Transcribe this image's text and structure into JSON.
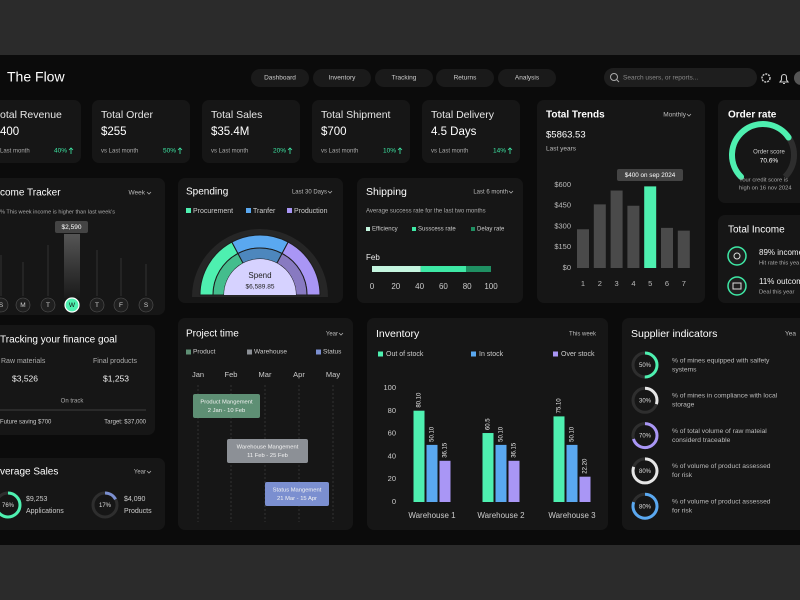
{
  "header": {
    "title": "The Flow",
    "tabs": [
      "Dashboard",
      "Inventory",
      "Tracking",
      "Returns",
      "Analysis"
    ],
    "search_placeholder": "Search users, or reports..."
  },
  "stat_cards": [
    {
      "title": "otal Revenue",
      "value": "400",
      "caption": "Last month",
      "change": "40%"
    },
    {
      "title": "Total Order",
      "value": "$255",
      "caption": "vs Last month",
      "change": "50%"
    },
    {
      "title": "Total Sales",
      "value": "$35.4M",
      "caption": "vs Last month",
      "change": "20%"
    },
    {
      "title": "Total Shipment",
      "value": "$700",
      "caption": "vs Last month",
      "change": "10%"
    },
    {
      "title": "Total Delivery",
      "value": "4.5 Days",
      "caption": "vs Last month",
      "change": "14%"
    }
  ],
  "total_trends": {
    "title": "Total Trends",
    "period": "Monthly",
    "value": "$5863.53",
    "caption": "Last years",
    "chart": {
      "type": "bar",
      "categories": [
        "1",
        "2",
        "3",
        "4",
        "5",
        "6",
        "7"
      ],
      "values": [
        280,
        460,
        560,
        450,
        590,
        290,
        270
      ],
      "colors": [
        "#4a4a4a",
        "#4a4a4a",
        "#4a4a4a",
        "#4a4a4a",
        "#4ef0b0",
        "#4a4a4a",
        "#4a4a4a"
      ],
      "ylim": [
        0,
        600
      ],
      "yticks": [
        {
          "value": 0,
          "label": "$0"
        },
        {
          "value": 150,
          "label": "$150"
        },
        {
          "value": 300,
          "label": "$300"
        },
        {
          "value": 450,
          "label": "$450"
        },
        {
          "value": 600,
          "label": "$600"
        }
      ],
      "tooltip": "$400 on sep 2024"
    }
  },
  "order_rate": {
    "title": "Order rate",
    "label": "Order score",
    "score": {
      "value": 70.6,
      "label": "70.6%"
    },
    "color": "#4ef0b0",
    "note": [
      "Your credit score is",
      "high on 16 nov 2024"
    ]
  },
  "total_income": {
    "title": "Total Income",
    "items": [
      {
        "value": "89% income",
        "caption": "Hit rate this yea"
      },
      {
        "value": "11% outcom",
        "caption": "Deal this year"
      }
    ]
  },
  "income_tracker": {
    "title": "come Tracker",
    "period": "Week",
    "note": "% This week income is higher than last week's",
    "tooltip": "$2,590",
    "days": [
      "S",
      "M",
      "T",
      "W",
      "T",
      "F",
      "S"
    ]
  },
  "spending": {
    "title": "Spending",
    "period": "Last 30 Days",
    "legend": [
      {
        "name": "Procurement",
        "color": "#4ef0b0"
      },
      {
        "name": "Tranfer",
        "color": "#5aa8f0"
      },
      {
        "name": "Production",
        "color": "#a996f5"
      }
    ],
    "label": "Spend",
    "value": "$6,589.85"
  },
  "shipping": {
    "title": "Shipping",
    "period": "Last 6 month",
    "note": "Average success  rate for the last two months",
    "chart": {
      "type": "bar",
      "orientation": "horizontal",
      "stacked": true,
      "categories": [
        "Feb"
      ],
      "series": [
        {
          "name": "Efficiency",
          "color": "#c4f5df",
          "values": [
            41
          ]
        },
        {
          "name": "Susscess rate",
          "color": "#3ee8a5",
          "values": [
            38
          ]
        },
        {
          "name": "Delay rate",
          "color": "#1f8f62",
          "values": [
            21
          ]
        }
      ],
      "xlim": [
        0,
        100
      ],
      "xticks": [
        0,
        20,
        40,
        60,
        80,
        100
      ]
    }
  },
  "finance_goal": {
    "title": "Tracking your finance goal",
    "items": [
      {
        "label": "Raw materials",
        "value": "$3,526"
      },
      {
        "label": "Final products",
        "value": "$1,253"
      }
    ],
    "status": "On track",
    "saving": "Future saving $700",
    "target": "Target: $37,000"
  },
  "average_sales": {
    "title": "verage Sales",
    "period": "Year",
    "items": [
      {
        "percent": {
          "value": 76,
          "label": "76%"
        },
        "value": "$9,253",
        "label": "Applications",
        "color": "#4ef0b0"
      },
      {
        "percent": {
          "value": 17,
          "label": "17%"
        },
        "value": "$4,090",
        "label": "Products",
        "color": "#7b8fd0"
      }
    ]
  },
  "project_time": {
    "title": "Project time",
    "period": "Year",
    "legend": [
      {
        "name": "Product",
        "color": "#5e8f74"
      },
      {
        "name": "Warehouse",
        "color": "#8c9096"
      },
      {
        "name": "Status",
        "color": "#7b8fd0"
      }
    ],
    "months": [
      "Jan",
      "Feb",
      "Mar",
      "Apr",
      "May"
    ],
    "tasks": [
      {
        "name": "Product Mangement",
        "dates": "2 Jan - 10 Feb"
      },
      {
        "name": "Warehouse Mangement",
        "dates": "11 Feb - 25 Feb"
      },
      {
        "name": "Status Mangement",
        "dates": "21 Mar - 15 Apr"
      }
    ]
  },
  "inventory": {
    "title": "Inventory",
    "period": "This week",
    "chart": {
      "type": "bar",
      "categories": [
        "Warehouse 1",
        "Warehouse 2",
        "Warehouse 3"
      ],
      "series": [
        {
          "name": "Out of stock",
          "color": "#4ef0b0",
          "values": [
            80.1,
            60.5,
            75.1
          ],
          "value_labels": [
            "80.10",
            "60.5",
            "75.10"
          ]
        },
        {
          "name": "In stock",
          "color": "#5aa8f0",
          "values": [
            50.1,
            50.1,
            50.1
          ],
          "value_labels": [
            "50.10",
            "50.10",
            "50.10"
          ]
        },
        {
          "name": "Over stock",
          "color": "#a996f5",
          "values": [
            36.15,
            36.15,
            22.2
          ],
          "value_labels": [
            "36.15",
            "36.15",
            "22.20"
          ]
        }
      ],
      "ylim": [
        0,
        100
      ],
      "yticks": [
        0,
        20,
        40,
        60,
        80,
        100
      ]
    }
  },
  "supplier_indicators": {
    "title": "Supplier indicators",
    "period": "Yea",
    "items": [
      {
        "percent": {
          "value": 50,
          "label": "50%"
        },
        "color": "#4ef0b0",
        "lines": [
          "% of mines equipped with salfety",
          "systems"
        ]
      },
      {
        "percent": {
          "value": 30,
          "label": "30%"
        },
        "color": "#e6e6e6",
        "lines": [
          "% of mines in compliance with local",
          "storage"
        ]
      },
      {
        "percent": {
          "value": 70,
          "label": "70%"
        },
        "color": "#a996f5",
        "lines": [
          "% of total volume of raw mateial",
          "considerd  traceable"
        ]
      },
      {
        "percent": {
          "value": 80,
          "label": "80%"
        },
        "color": "#e6e6e6",
        "lines": [
          "% of volume of product assessed",
          "for risk"
        ]
      },
      {
        "percent": {
          "value": 80,
          "label": "80%"
        },
        "color": "#5aa8f0",
        "lines": [
          "% of volume of product assessed",
          "for risk"
        ]
      }
    ]
  }
}
